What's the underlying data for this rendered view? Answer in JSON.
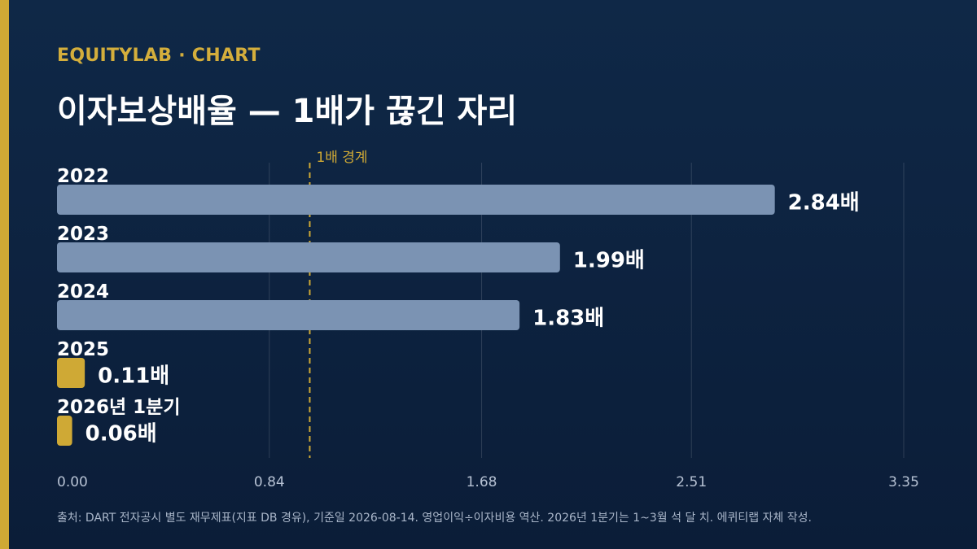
{
  "brand": "EQUITYLAB · CHART",
  "title": "이자보상배율 — 1배가 끊긴 자리",
  "source": "출처: DART 전자공시 별도 재무제표(지표 DB 경유), 기준일 2026-08-14. 영업이익÷이자비용 역산. 2026년 1분기는 1~3월 석 달 치. 에퀴티랩 자체 작성.",
  "colors": {
    "background": "#0d2340",
    "accent": "#cfa935",
    "bar_normal": "#7b93b3",
    "bar_highlight": "#cfa935",
    "text": "#ffffff",
    "axis_text": "#b7c2d4"
  },
  "chart_data": {
    "type": "bar",
    "orientation": "horizontal",
    "categories": [
      "2022",
      "2023",
      "2024",
      "2025",
      "2026년 1분기"
    ],
    "values": [
      2.84,
      1.99,
      1.83,
      0.11,
      0.06
    ],
    "value_labels": [
      "2.84배",
      "1.99배",
      "1.83배",
      "0.11배",
      "0.06배"
    ],
    "highlight": [
      false,
      false,
      false,
      true,
      true
    ],
    "xlim": [
      0,
      3.35
    ],
    "xticks": [
      "0.00",
      "0.84",
      "1.68",
      "2.51",
      "3.35"
    ],
    "grid": true,
    "reference_line": {
      "value": 1.0,
      "label": "1배 경계"
    }
  }
}
